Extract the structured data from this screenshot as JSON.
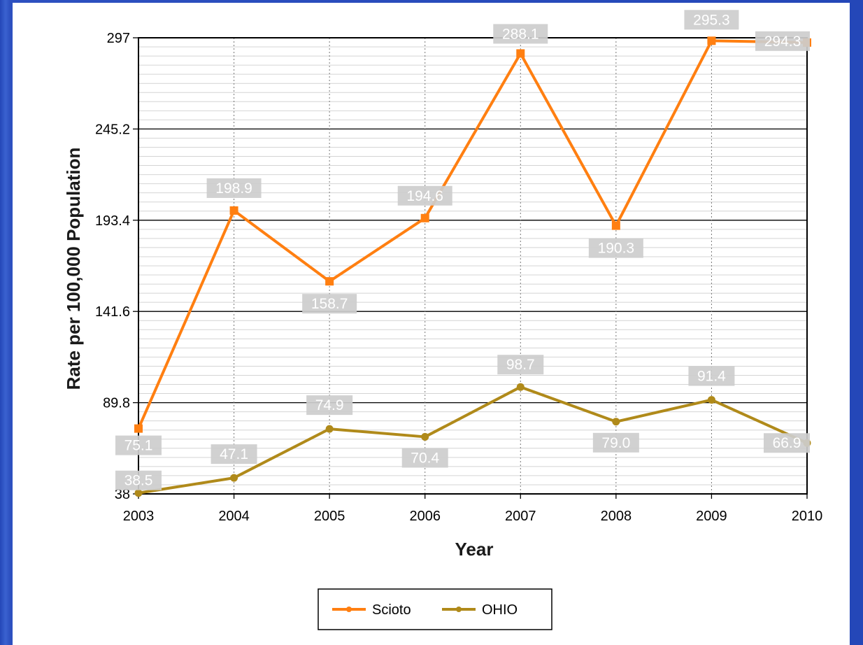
{
  "colors": {
    "background": "#2f55c4",
    "panel": "#ffffff",
    "scioto": "#ff7f11",
    "ohio": "#b08a1a",
    "label_box": "#cdcdcd"
  },
  "chart_data": {
    "type": "line",
    "xlabel": "Year",
    "ylabel": "Rate per 100,000 Population",
    "x": [
      "2003",
      "2004",
      "2005",
      "2006",
      "2007",
      "2008",
      "2009",
      "2010"
    ],
    "ylim": [
      38,
      297
    ],
    "yticks": [
      "38",
      "89.8",
      "141.6",
      "193.4",
      "245.2",
      "297"
    ],
    "grid": true,
    "legend": "bottom-center",
    "series": [
      {
        "name": "Scioto",
        "color": "#ff7f11",
        "marker": "square",
        "values": [
          75.1,
          198.9,
          158.7,
          194.6,
          288.1,
          190.3,
          295.3,
          294.3
        ],
        "labels": [
          "75.1",
          "198.9",
          "158.7",
          "194.6",
          "288.1",
          "190.3",
          "295.3",
          "294.3"
        ]
      },
      {
        "name": "OHIO",
        "color": "#b08a1a",
        "marker": "circle",
        "values": [
          38.5,
          47.1,
          74.9,
          70.4,
          98.7,
          79.0,
          91.4,
          66.9
        ],
        "labels": [
          "38.5",
          "47.1",
          "74.9",
          "70.4",
          "98.7",
          "79.0",
          "91.4",
          "66.9"
        ]
      }
    ]
  }
}
